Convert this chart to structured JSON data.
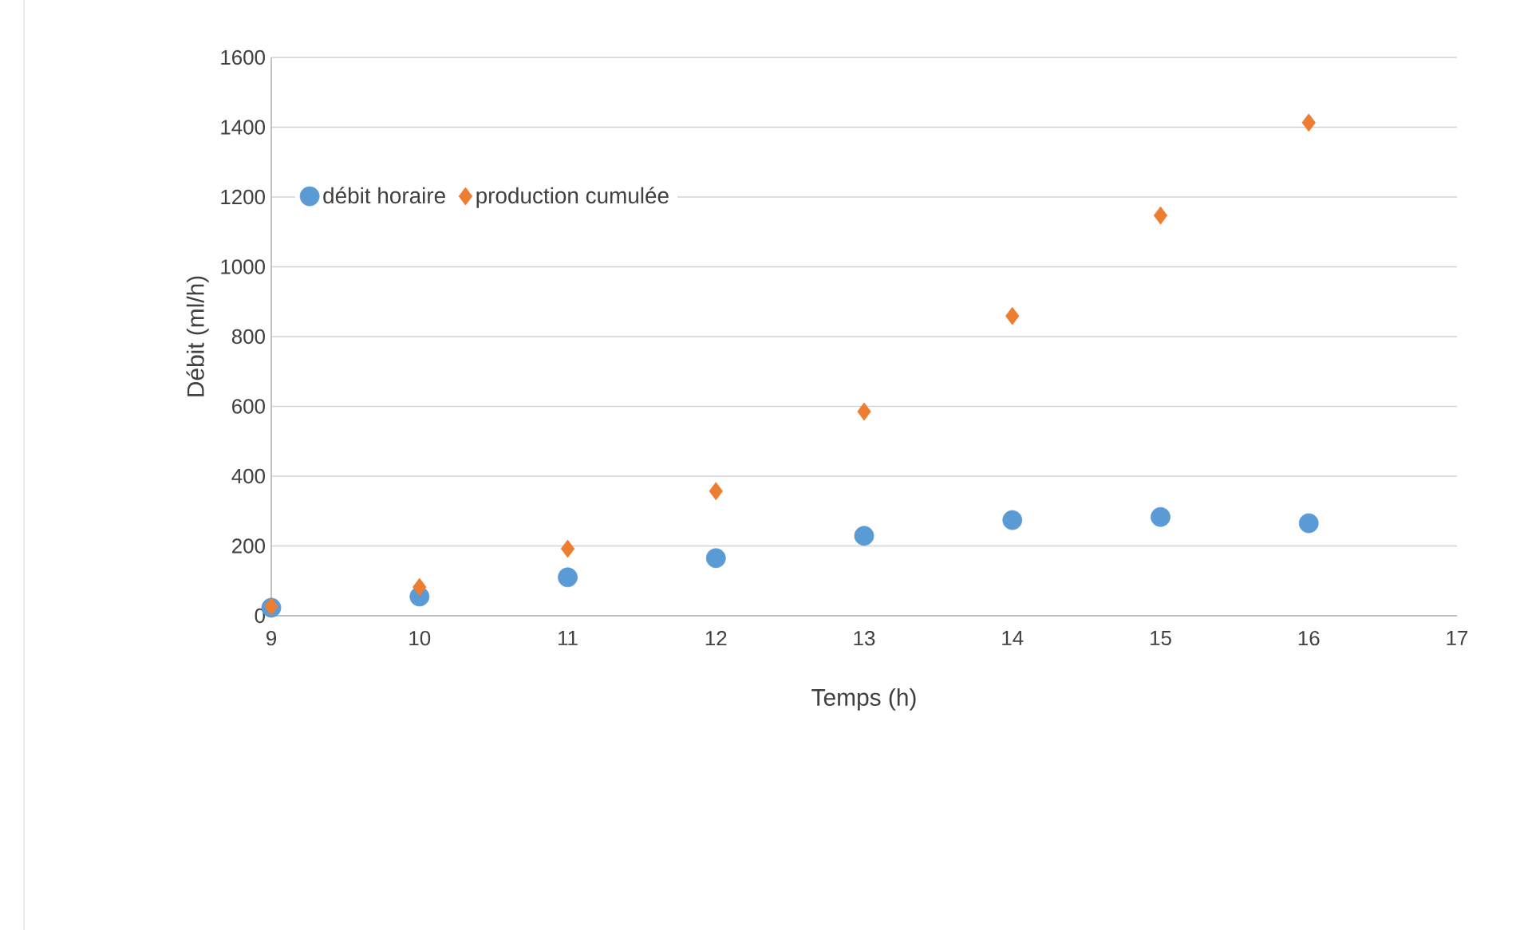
{
  "chart_data": {
    "type": "scatter",
    "xlabel": "Temps (h)",
    "ylabel": "Débit (ml/h)",
    "x": [
      9,
      10,
      11,
      12,
      13,
      14,
      15,
      16
    ],
    "series": [
      {
        "name": "débit horaire",
        "color": "#5b9bd5",
        "marker": "circle",
        "values": [
          23,
          55,
          110,
          165,
          229,
          274,
          283,
          265
        ]
      },
      {
        "name": "production cumulée",
        "color": "#ed7d31",
        "marker": "diamond",
        "values": [
          27,
          82,
          192,
          357,
          585,
          859,
          1147,
          1413
        ]
      }
    ],
    "xlim": [
      9,
      17
    ],
    "xticks": [
      9,
      10,
      11,
      12,
      13,
      14,
      15,
      16,
      17
    ],
    "ylim": [
      0,
      1600
    ],
    "yticks": [
      0,
      200,
      400,
      600,
      800,
      1000,
      1200,
      1400,
      1600
    ],
    "grid": "y",
    "legend": "top left"
  }
}
